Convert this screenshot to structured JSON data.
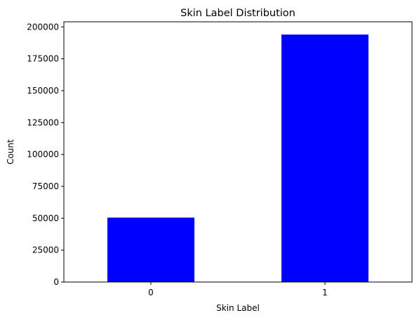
{
  "chart_data": {
    "type": "bar",
    "title": "Skin Label Distribution",
    "xlabel": "Skin Label",
    "ylabel": "Count",
    "categories": [
      "0",
      "1"
    ],
    "values": [
      50500,
      194000
    ],
    "ylim": [
      0,
      204000
    ],
    "yticks": [
      0,
      25000,
      50000,
      75000,
      100000,
      125000,
      150000,
      175000,
      200000
    ],
    "ytick_labels": [
      "0",
      "25000",
      "50000",
      "75000",
      "100000",
      "125000",
      "150000",
      "175000",
      "200000"
    ],
    "bar_color": "#0000ff",
    "grid": false,
    "legend": "none"
  }
}
